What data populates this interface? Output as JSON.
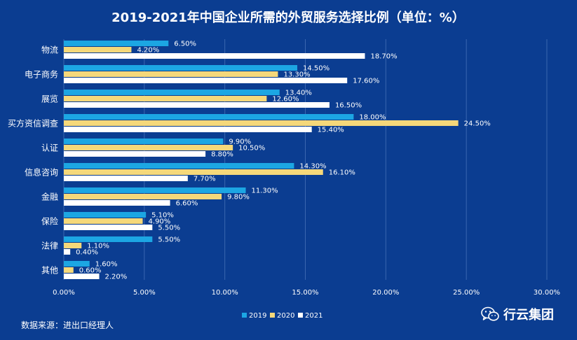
{
  "chart_data": {
    "type": "bar",
    "orientation": "horizontal",
    "title": "2019-2021年中国企业所需的外贸服务选择比例（单位：%）",
    "categories": [
      "物流",
      "电子商务",
      "展览",
      "买方资信调查",
      "认证",
      "信息咨询",
      "金融",
      "保险",
      "法律",
      "其他"
    ],
    "series": [
      {
        "name": "2019",
        "color": "#1ca6e3",
        "values": [
          6.5,
          14.5,
          13.4,
          18.0,
          9.9,
          14.3,
          11.3,
          5.1,
          5.5,
          1.6
        ],
        "labels": [
          "6.50%",
          "14.50%",
          "13.40%",
          "18.00%",
          "9.90%",
          "14.30%",
          "11.30%",
          "5.10%",
          "5.50%",
          "1.60%"
        ]
      },
      {
        "name": "2020",
        "color": "#f5d87a",
        "values": [
          4.2,
          13.3,
          12.6,
          24.5,
          10.5,
          16.1,
          9.8,
          4.9,
          1.1,
          0.6
        ],
        "labels": [
          "4.20%",
          "13.30%",
          "12.60%",
          "24.50%",
          "10.50%",
          "16.10%",
          "9.80%",
          "4.90%",
          "1.10%",
          "0.60%"
        ]
      },
      {
        "name": "2021",
        "color": "#ffffff",
        "values": [
          18.7,
          17.6,
          16.5,
          15.4,
          8.8,
          7.7,
          6.6,
          5.5,
          0.4,
          2.2
        ],
        "labels": [
          "18.70%",
          "17.60%",
          "16.50%",
          "15.40%",
          "8.80%",
          "7.70%",
          "6.60%",
          "5.50%",
          "0.40%",
          "2.20%"
        ]
      }
    ],
    "xlim": [
      0,
      30
    ],
    "xticks": [
      0,
      5,
      10,
      15,
      20,
      25,
      30
    ],
    "xtick_labels": [
      "0.00%",
      "5.00%",
      "10.00%",
      "15.00%",
      "20.00%",
      "25.00%",
      "30.00%"
    ],
    "grid": true,
    "legend_position": "bottom-center"
  },
  "footer": {
    "source": "数据来源：进出口经理人",
    "brand": "行云集团"
  }
}
